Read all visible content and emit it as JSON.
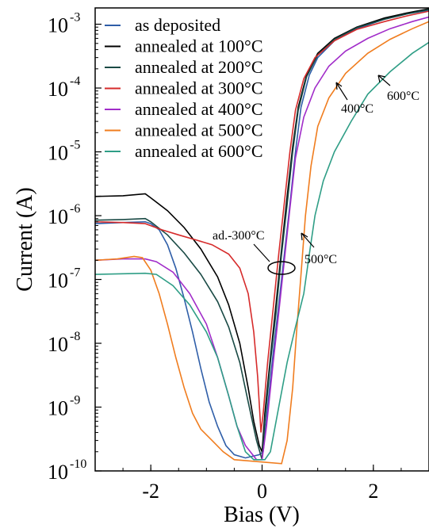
{
  "chart_data": {
    "type": "line",
    "xlabel": "Bias (V)",
    "ylabel": "Current (A)",
    "xlim": [
      -3,
      3
    ],
    "ylim": [
      1e-10,
      0.0018
    ],
    "yscale": "log",
    "grid": false,
    "legend_position": "top-left",
    "x_ticks": [
      {
        "value": -2,
        "label": "-2"
      },
      {
        "value": 0,
        "label": "0"
      },
      {
        "value": 2,
        "label": "2"
      }
    ],
    "y_ticks": [
      {
        "value": 1e-10,
        "base": "10",
        "exp": "-10"
      },
      {
        "value": 1e-09,
        "base": "10",
        "exp": "-9"
      },
      {
        "value": 1e-08,
        "base": "10",
        "exp": "-8"
      },
      {
        "value": 1e-07,
        "base": "10",
        "exp": "-7"
      },
      {
        "value": 1e-06,
        "base": "10",
        "exp": "-6"
      },
      {
        "value": 1e-05,
        "base": "10",
        "exp": "-5"
      },
      {
        "value": 0.0001,
        "base": "10",
        "exp": "-4"
      },
      {
        "value": 0.001,
        "base": "10",
        "exp": "-3"
      }
    ],
    "series": [
      {
        "name": "as deposited",
        "color": "#2f5ea8",
        "points": [
          [
            -3,
            7.5e-07
          ],
          [
            -2.5,
            7.8e-07
          ],
          [
            -2.1,
            8e-07
          ],
          [
            -2.0,
            7.5e-07
          ],
          [
            -1.85,
            6e-07
          ],
          [
            -1.7,
            3.5e-07
          ],
          [
            -1.55,
            1.5e-07
          ],
          [
            -1.4,
            5e-08
          ],
          [
            -1.25,
            1.5e-08
          ],
          [
            -1.1,
            4e-09
          ],
          [
            -0.95,
            1.2e-09
          ],
          [
            -0.8,
            5e-10
          ],
          [
            -0.65,
            2.5e-10
          ],
          [
            -0.5,
            1.8e-10
          ],
          [
            -0.3,
            1.6e-10
          ],
          [
            -0.05,
            1.8e-10
          ],
          [
            0.02,
            2e-10
          ],
          [
            0.1,
            1e-09
          ],
          [
            0.2,
            7e-09
          ],
          [
            0.3,
            4e-08
          ],
          [
            0.4,
            2.5e-07
          ],
          [
            0.5,
            1.5e-06
          ],
          [
            0.6,
            1e-05
          ],
          [
            0.7,
            5e-05
          ],
          [
            0.85,
            0.00016
          ],
          [
            1.0,
            0.0003
          ],
          [
            1.3,
            0.00055
          ],
          [
            1.7,
            0.00085
          ],
          [
            2.2,
            0.0012
          ],
          [
            2.6,
            0.00145
          ],
          [
            3,
            0.00165
          ]
        ]
      },
      {
        "name": "annealed at 100°C",
        "color": "#000000",
        "points": [
          [
            -3,
            2e-06
          ],
          [
            -2.5,
            2.05e-06
          ],
          [
            -2.1,
            2.2e-06
          ],
          [
            -2.0,
            1.9e-06
          ],
          [
            -1.7,
            1.2e-06
          ],
          [
            -1.4,
            6.5e-07
          ],
          [
            -1.1,
            3e-07
          ],
          [
            -0.8,
            1.1e-07
          ],
          [
            -0.6,
            4e-08
          ],
          [
            -0.4,
            1e-08
          ],
          [
            -0.25,
            2e-09
          ],
          [
            -0.15,
            6e-10
          ],
          [
            -0.05,
            2.5e-10
          ],
          [
            0.0,
            2e-10
          ],
          [
            0.05,
            8e-10
          ],
          [
            0.15,
            6e-09
          ],
          [
            0.25,
            4e-08
          ],
          [
            0.35,
            3e-07
          ],
          [
            0.45,
            2e-06
          ],
          [
            0.55,
            1.2e-05
          ],
          [
            0.65,
            5e-05
          ],
          [
            0.8,
            0.00016
          ],
          [
            1.0,
            0.00035
          ],
          [
            1.3,
            0.0006
          ],
          [
            1.7,
            0.0009
          ],
          [
            2.2,
            0.00125
          ],
          [
            2.6,
            0.0015
          ],
          [
            3,
            0.00175
          ]
        ]
      },
      {
        "name": "annealed at 200°C",
        "color": "#1a4a45",
        "points": [
          [
            -3,
            8.5e-07
          ],
          [
            -2.5,
            8.7e-07
          ],
          [
            -2.1,
            9e-07
          ],
          [
            -2.0,
            8e-07
          ],
          [
            -1.7,
            5e-07
          ],
          [
            -1.4,
            2.6e-07
          ],
          [
            -1.1,
            1.2e-07
          ],
          [
            -0.8,
            4.5e-08
          ],
          [
            -0.6,
            1.8e-08
          ],
          [
            -0.4,
            5e-09
          ],
          [
            -0.25,
            1.2e-09
          ],
          [
            -0.1,
            3e-10
          ],
          [
            0.0,
            1.5e-10
          ],
          [
            0.05,
            6e-10
          ],
          [
            0.15,
            5e-09
          ],
          [
            0.25,
            3e-08
          ],
          [
            0.35,
            2.5e-07
          ],
          [
            0.45,
            1.5e-06
          ],
          [
            0.55,
            1e-05
          ],
          [
            0.65,
            4.5e-05
          ],
          [
            0.8,
            0.00015
          ],
          [
            1.0,
            0.00033
          ],
          [
            1.3,
            0.00058
          ],
          [
            1.7,
            0.00088
          ],
          [
            2.2,
            0.0012
          ],
          [
            2.6,
            0.00145
          ],
          [
            3,
            0.0017
          ]
        ]
      },
      {
        "name": "annealed at 300°C",
        "color": "#d62b2b",
        "points": [
          [
            -3,
            8e-07
          ],
          [
            -2.5,
            7.8e-07
          ],
          [
            -2.1,
            7.5e-07
          ],
          [
            -1.8,
            6e-07
          ],
          [
            -1.5,
            5e-07
          ],
          [
            -1.2,
            4.2e-07
          ],
          [
            -0.9,
            3.5e-07
          ],
          [
            -0.6,
            2.5e-07
          ],
          [
            -0.4,
            1.5e-07
          ],
          [
            -0.25,
            6e-08
          ],
          [
            -0.15,
            1.5e-08
          ],
          [
            -0.08,
            3e-09
          ],
          [
            -0.02,
            4e-10
          ],
          [
            0.02,
            8e-10
          ],
          [
            0.1,
            5e-09
          ],
          [
            0.2,
            3.5e-08
          ],
          [
            0.3,
            2.5e-07
          ],
          [
            0.4,
            1.6e-06
          ],
          [
            0.5,
            1e-05
          ],
          [
            0.6,
            4.5e-05
          ],
          [
            0.75,
            0.00014
          ],
          [
            0.95,
            0.0003
          ],
          [
            1.3,
            0.00055
          ],
          [
            1.7,
            0.00083
          ],
          [
            2.2,
            0.0011
          ],
          [
            2.6,
            0.00135
          ],
          [
            3,
            0.0016
          ]
        ]
      },
      {
        "name": "annealed at 400°C",
        "color": "#a12cc9",
        "points": [
          [
            -3,
            2e-07
          ],
          [
            -2.5,
            2.1e-07
          ],
          [
            -2.1,
            2.1e-07
          ],
          [
            -1.9,
            1.9e-07
          ],
          [
            -1.6,
            1.3e-07
          ],
          [
            -1.3,
            6e-08
          ],
          [
            -1.0,
            2e-08
          ],
          [
            -0.8,
            6e-09
          ],
          [
            -0.6,
            1.5e-09
          ],
          [
            -0.45,
            5e-10
          ],
          [
            -0.3,
            2.5e-10
          ],
          [
            -0.1,
            1.5e-10
          ],
          [
            0.0,
            1.5e-10
          ],
          [
            0.08,
            5e-10
          ],
          [
            0.2,
            5e-09
          ],
          [
            0.3,
            3e-08
          ],
          [
            0.4,
            2e-07
          ],
          [
            0.5,
            1.3e-06
          ],
          [
            0.6,
            8e-06
          ],
          [
            0.75,
            3.5e-05
          ],
          [
            0.95,
            0.0001
          ],
          [
            1.2,
            0.00022
          ],
          [
            1.5,
            0.00038
          ],
          [
            1.9,
            0.0006
          ],
          [
            2.3,
            0.00085
          ],
          [
            2.7,
            0.0011
          ],
          [
            3,
            0.0013
          ]
        ]
      },
      {
        "name": "annealed at 500°C",
        "color": "#f07d1f",
        "points": [
          [
            -3,
            2e-07
          ],
          [
            -2.6,
            2.1e-07
          ],
          [
            -2.3,
            2.3e-07
          ],
          [
            -2.15,
            2.2e-07
          ],
          [
            -2.0,
            1.4e-07
          ],
          [
            -1.85,
            6e-08
          ],
          [
            -1.7,
            2e-08
          ],
          [
            -1.55,
            6e-09
          ],
          [
            -1.4,
            2e-09
          ],
          [
            -1.25,
            8e-10
          ],
          [
            -1.1,
            4.5e-10
          ],
          [
            -0.9,
            3e-10
          ],
          [
            -0.7,
            2e-10
          ],
          [
            -0.5,
            1.5e-10
          ],
          [
            0.35,
            1.3e-10
          ],
          [
            0.45,
            3e-10
          ],
          [
            0.55,
            2e-09
          ],
          [
            0.62,
            1.5e-08
          ],
          [
            0.7,
            1.2e-07
          ],
          [
            0.78,
            1e-06
          ],
          [
            0.88,
            6e-06
          ],
          [
            1.0,
            2.5e-05
          ],
          [
            1.2,
            7e-05
          ],
          [
            1.5,
            0.00017
          ],
          [
            1.9,
            0.00035
          ],
          [
            2.3,
            0.00058
          ],
          [
            2.7,
            0.00085
          ],
          [
            3,
            0.0011
          ]
        ]
      },
      {
        "name": "annealed at 600°C",
        "color": "#2f9e86",
        "points": [
          [
            -3,
            1.2e-07
          ],
          [
            -2.5,
            1.23e-07
          ],
          [
            -2.1,
            1.25e-07
          ],
          [
            -1.9,
            1.2e-07
          ],
          [
            -1.6,
            8e-08
          ],
          [
            -1.3,
            4e-08
          ],
          [
            -1.0,
            1.5e-08
          ],
          [
            -0.8,
            6e-09
          ],
          [
            -0.6,
            1.5e-09
          ],
          [
            -0.45,
            5e-10
          ],
          [
            -0.3,
            2e-10
          ],
          [
            -0.15,
            1.5e-10
          ],
          [
            0.05,
            1.5e-10
          ],
          [
            0.15,
            2e-10
          ],
          [
            0.3,
            1e-09
          ],
          [
            0.45,
            5e-09
          ],
          [
            0.6,
            1.8e-08
          ],
          [
            0.75,
            6e-08
          ],
          [
            0.85,
            2.5e-07
          ],
          [
            0.95,
            1e-06
          ],
          [
            1.1,
            3.5e-06
          ],
          [
            1.3,
            1e-05
          ],
          [
            1.6,
            3e-05
          ],
          [
            1.9,
            8e-05
          ],
          [
            2.3,
            0.00018
          ],
          [
            2.7,
            0.00035
          ],
          [
            3,
            0.00052
          ]
        ]
      }
    ],
    "annotations": [
      {
        "text": "ad.-300°C",
        "x": 0.03,
        "y": 2.2e-07
      },
      {
        "text": "400°C",
        "x": 1.55,
        "y": 6.5e-05
      },
      {
        "text": "600°C",
        "x": 2.4,
        "y": 0.00011
      },
      {
        "text": "500°C",
        "x": 0.9,
        "y": 1e-07
      }
    ]
  }
}
